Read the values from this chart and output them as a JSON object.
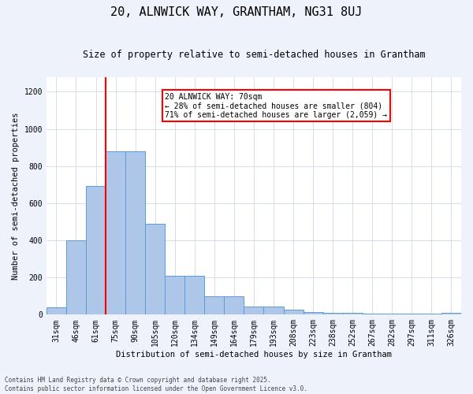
{
  "title1": "20, ALNWICK WAY, GRANTHAM, NG31 8UJ",
  "title2": "Size of property relative to semi-detached houses in Grantham",
  "xlabel": "Distribution of semi-detached houses by size in Grantham",
  "ylabel": "Number of semi-detached properties",
  "categories": [
    "31sqm",
    "46sqm",
    "61sqm",
    "75sqm",
    "90sqm",
    "105sqm",
    "120sqm",
    "134sqm",
    "149sqm",
    "164sqm",
    "179sqm",
    "193sqm",
    "208sqm",
    "223sqm",
    "238sqm",
    "252sqm",
    "267sqm",
    "282sqm",
    "297sqm",
    "311sqm",
    "326sqm"
  ],
  "values": [
    40,
    400,
    693,
    880,
    878,
    490,
    210,
    210,
    100,
    100,
    45,
    45,
    27,
    15,
    8,
    8,
    5,
    5,
    5,
    5,
    10
  ],
  "bar_color": "#aec6e8",
  "bar_edge_color": "#5b9bd5",
  "grid_color": "#d0d8e8",
  "vline_color": "red",
  "vline_x": 2.5,
  "annotation_text": "20 ALNWICK WAY: 70sqm\n← 28% of semi-detached houses are smaller (804)\n71% of semi-detached houses are larger (2,059) →",
  "annotation_box_color": "white",
  "annotation_box_edge_color": "red",
  "ylim": [
    0,
    1280
  ],
  "yticks": [
    0,
    200,
    400,
    600,
    800,
    1000,
    1200
  ],
  "footer": "Contains HM Land Registry data © Crown copyright and database right 2025.\nContains public sector information licensed under the Open Government Licence v3.0.",
  "bg_color": "#eef2fb",
  "plot_bg_color": "#ffffff",
  "title1_fontsize": 11,
  "title2_fontsize": 8.5,
  "tick_fontsize": 7,
  "ylabel_fontsize": 7.5,
  "xlabel_fontsize": 7.5,
  "annotation_fontsize": 7,
  "footer_fontsize": 5.5
}
